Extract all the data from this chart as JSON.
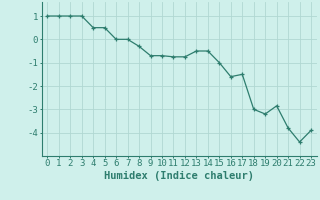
{
  "x": [
    0,
    1,
    2,
    3,
    4,
    5,
    6,
    7,
    8,
    9,
    10,
    11,
    12,
    13,
    14,
    15,
    16,
    17,
    18,
    19,
    20,
    21,
    22,
    23
  ],
  "y": [
    1.0,
    1.0,
    1.0,
    1.0,
    0.5,
    0.5,
    0.0,
    0.0,
    -0.3,
    -0.7,
    -0.7,
    -0.75,
    -0.75,
    -0.5,
    -0.5,
    -1.0,
    -1.6,
    -1.5,
    -3.0,
    -3.2,
    -2.85,
    -3.8,
    -4.4,
    -3.9
  ],
  "line_color": "#2e7d6e",
  "marker": "+",
  "xlabel": "Humidex (Indice chaleur)",
  "xlim": [
    -0.5,
    23.5
  ],
  "ylim": [
    -5.0,
    1.6
  ],
  "yticks": [
    1,
    0,
    -1,
    -2,
    -3,
    -4
  ],
  "xticks": [
    0,
    1,
    2,
    3,
    4,
    5,
    6,
    7,
    8,
    9,
    10,
    11,
    12,
    13,
    14,
    15,
    16,
    17,
    18,
    19,
    20,
    21,
    22,
    23
  ],
  "bg_color": "#cff0eb",
  "grid_color": "#b0d8d2",
  "label_fontsize": 7.5,
  "tick_fontsize": 6.5
}
